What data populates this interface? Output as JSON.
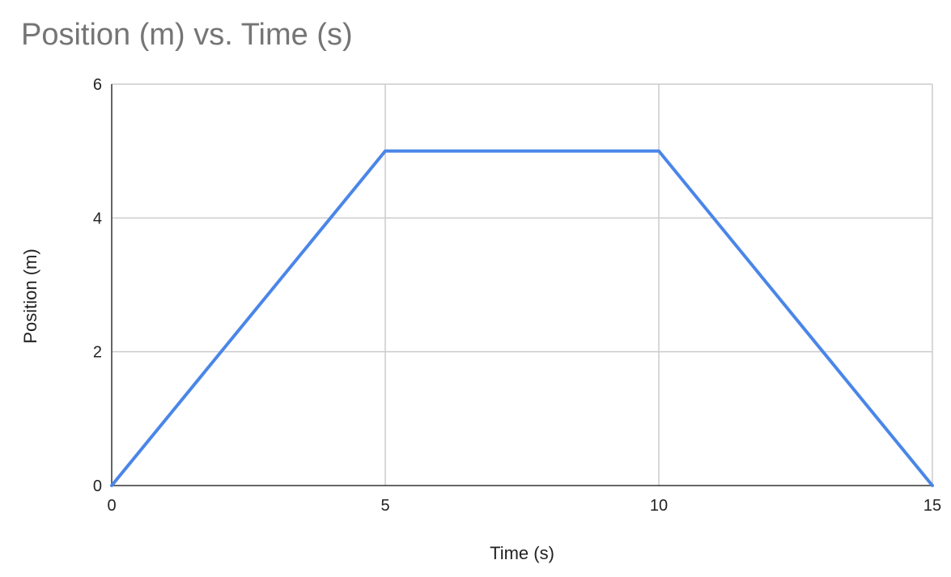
{
  "chart_data": {
    "type": "line",
    "title": "Position (m) vs. Time (s)",
    "xlabel": "Time (s)",
    "ylabel": "Position (m)",
    "xlim": [
      0,
      15
    ],
    "ylim": [
      0,
      6
    ],
    "xticks": [
      0,
      5,
      10,
      15
    ],
    "yticks": [
      0,
      2,
      4,
      6
    ],
    "grid": true,
    "series": [
      {
        "color": "#4a86e8",
        "x": [
          0,
          5,
          10,
          15
        ],
        "y": [
          0,
          5,
          5,
          0
        ]
      }
    ]
  }
}
